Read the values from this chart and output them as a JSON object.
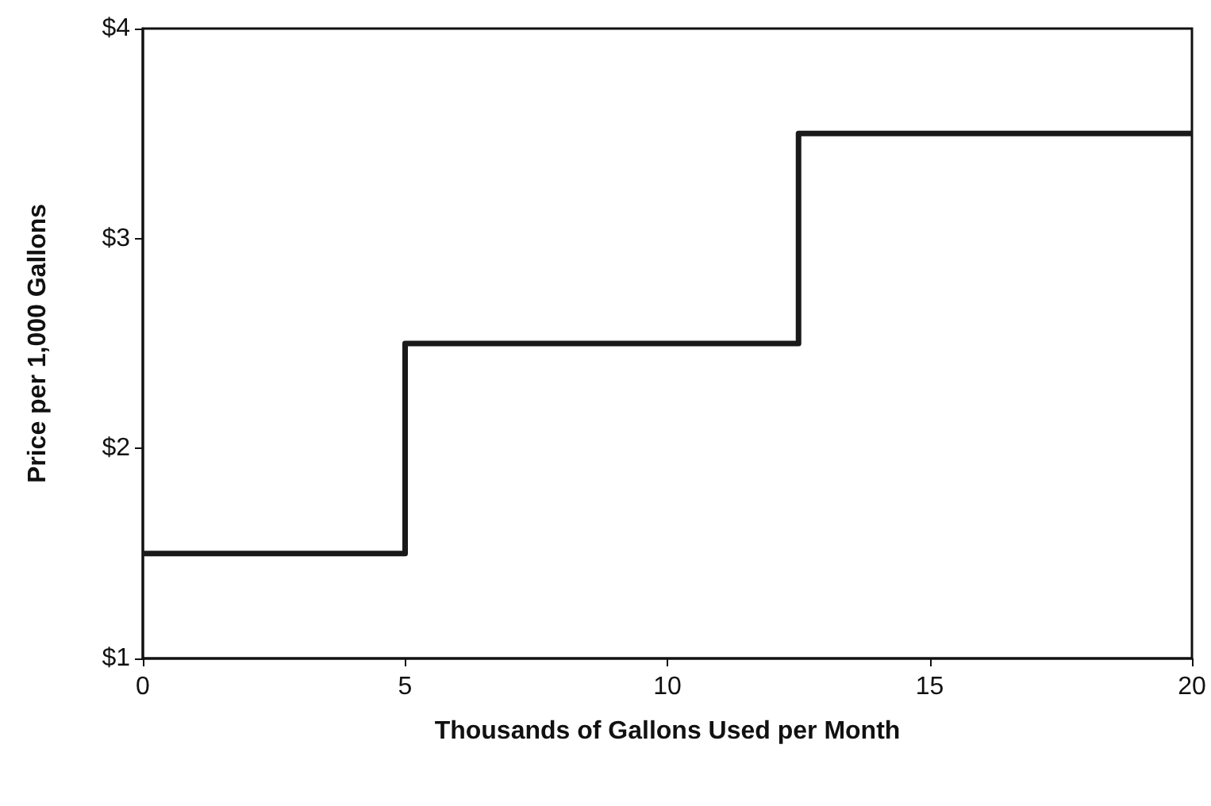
{
  "chart_data": {
    "type": "step",
    "xlabel": "Thousands of Gallons Used per Month",
    "ylabel": "Price per 1,000 Gallons",
    "x": [
      0,
      5,
      12.5,
      20
    ],
    "series": [
      {
        "color": "#1a1a1a",
        "values": [
          1.5,
          2.5,
          3.5,
          3.5
        ]
      }
    ],
    "xlim": [
      0,
      20
    ],
    "xticks": [
      0,
      5,
      10,
      15,
      20
    ],
    "ylim": [
      1,
      4
    ],
    "yticks": [
      {
        "value": 1,
        "label": "$1"
      },
      {
        "value": 2,
        "label": "$2"
      },
      {
        "value": 3,
        "label": "$3"
      },
      {
        "value": 4,
        "label": "$4"
      }
    ],
    "grid": false,
    "marker": "none",
    "line_style": "solid"
  }
}
